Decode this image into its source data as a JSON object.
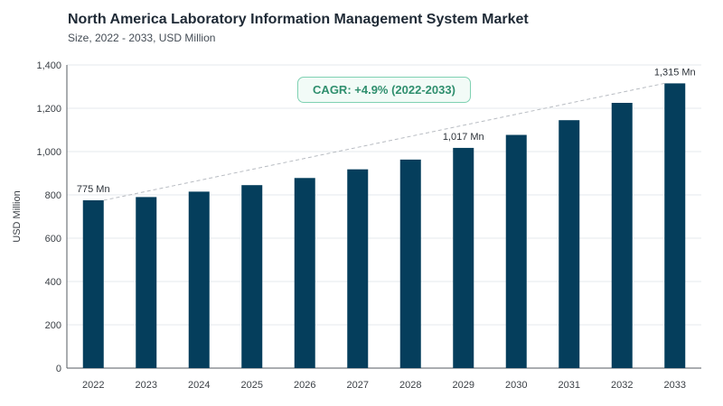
{
  "header": {
    "title": "North America Laboratory Information Management System Market",
    "subtitle": "Size, 2022 - 2033, USD Million"
  },
  "annotation": {
    "cagr_label": "CAGR: +4.9% (2022-2033)"
  },
  "colors": {
    "bar": "#053e5c",
    "grid": "#e6e9ec",
    "trend_line": "#b8bcc2",
    "cagr_border": "#7fd1b2",
    "cagr_text": "#2f8f6e"
  },
  "chart_data": {
    "type": "bar",
    "title": "North America Laboratory Information Management System Market",
    "subtitle": "Size, 2022 - 2033, USD Million",
    "xlabel": "",
    "ylabel": "USD Million",
    "ylim": [
      0,
      1400
    ],
    "yticks": [
      0,
      200,
      400,
      600,
      800,
      1000,
      1200,
      1400
    ],
    "ytick_labels": [
      "0",
      "200",
      "400",
      "600",
      "800",
      "1,000",
      "1,200",
      "1,400"
    ],
    "categories": [
      "2022",
      "2023",
      "2024",
      "2025",
      "2026",
      "2027",
      "2028",
      "2029",
      "2030",
      "2031",
      "2032",
      "2033"
    ],
    "values": [
      775,
      790,
      815,
      845,
      878,
      918,
      963,
      1017,
      1077,
      1145,
      1225,
      1315
    ],
    "data_labels": [
      {
        "index": 0,
        "text": "775 Mn"
      },
      {
        "index": 7,
        "text": "1,017 Mn"
      },
      {
        "index": 11,
        "text": "1,315 Mn"
      }
    ],
    "trend_line": {
      "from_index": 0,
      "to_index": 11,
      "style": "dashed"
    },
    "grid": true,
    "legend": "none"
  }
}
